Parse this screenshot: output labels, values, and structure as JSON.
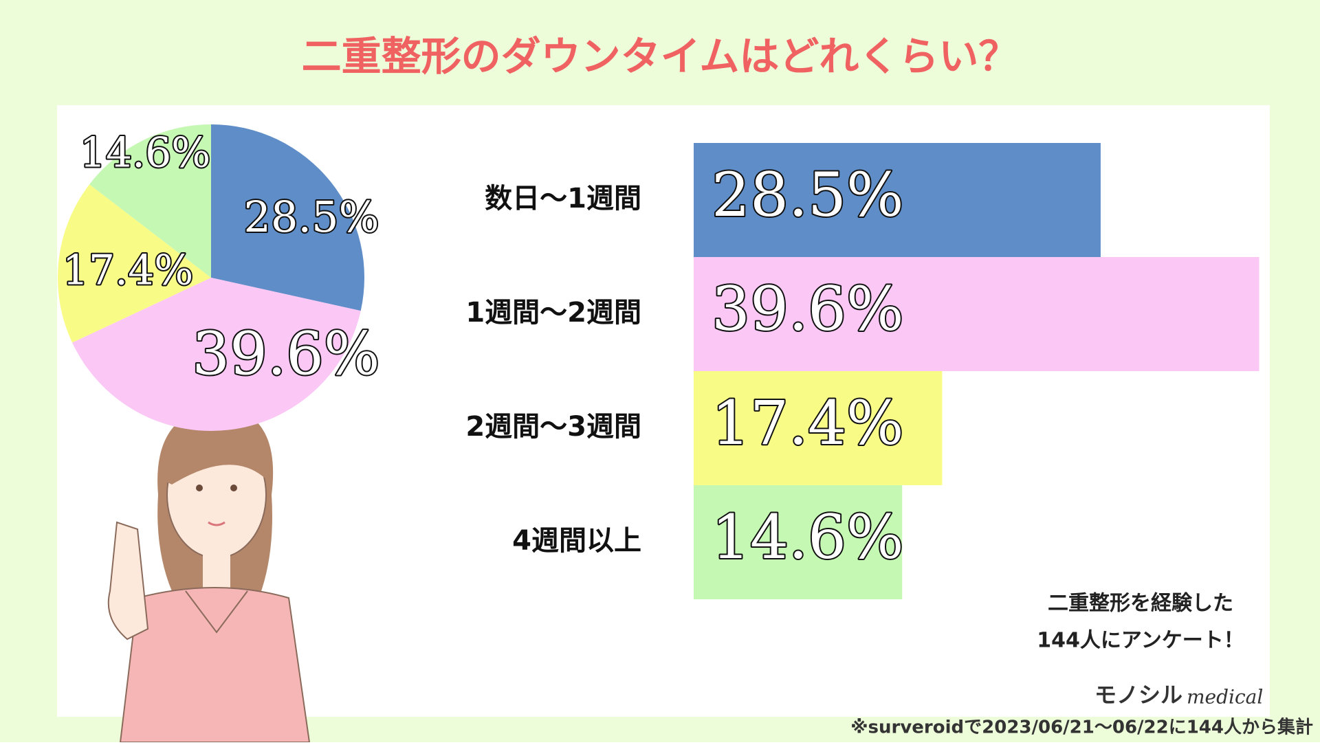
{
  "chart_data": [
    {
      "type": "pie",
      "values": [
        28.5,
        39.6,
        17.4,
        14.6
      ],
      "value_labels": [
        "28.5%",
        "39.6%",
        "17.4%",
        "14.6%"
      ],
      "colors": [
        "#5f8dc8",
        "#fbc7f5",
        "#f8fc86",
        "#c5f8b3"
      ]
    },
    {
      "type": "bar",
      "title": "二重整形のダウンタイムはどれくらい？",
      "categories": [
        "数日～1週間",
        "1週間～2週間",
        "2週間～3週間",
        "4週間以上"
      ],
      "values": [
        28.5,
        39.6,
        17.4,
        14.6
      ],
      "value_labels": [
        "28.5%",
        "39.6%",
        "17.4%",
        "14.6%"
      ],
      "colors": [
        "#5f8dc8",
        "#fbc7f5",
        "#f8fc86",
        "#c5f8b3"
      ]
    }
  ],
  "note": {
    "line1": "二重整形を経験した",
    "line2": "144人にアンケート！"
  },
  "logo": {
    "brand": "モノシル",
    "sub": "medical"
  },
  "footnote": "※surveroidで2023/06/21～06/22に144人から集計"
}
